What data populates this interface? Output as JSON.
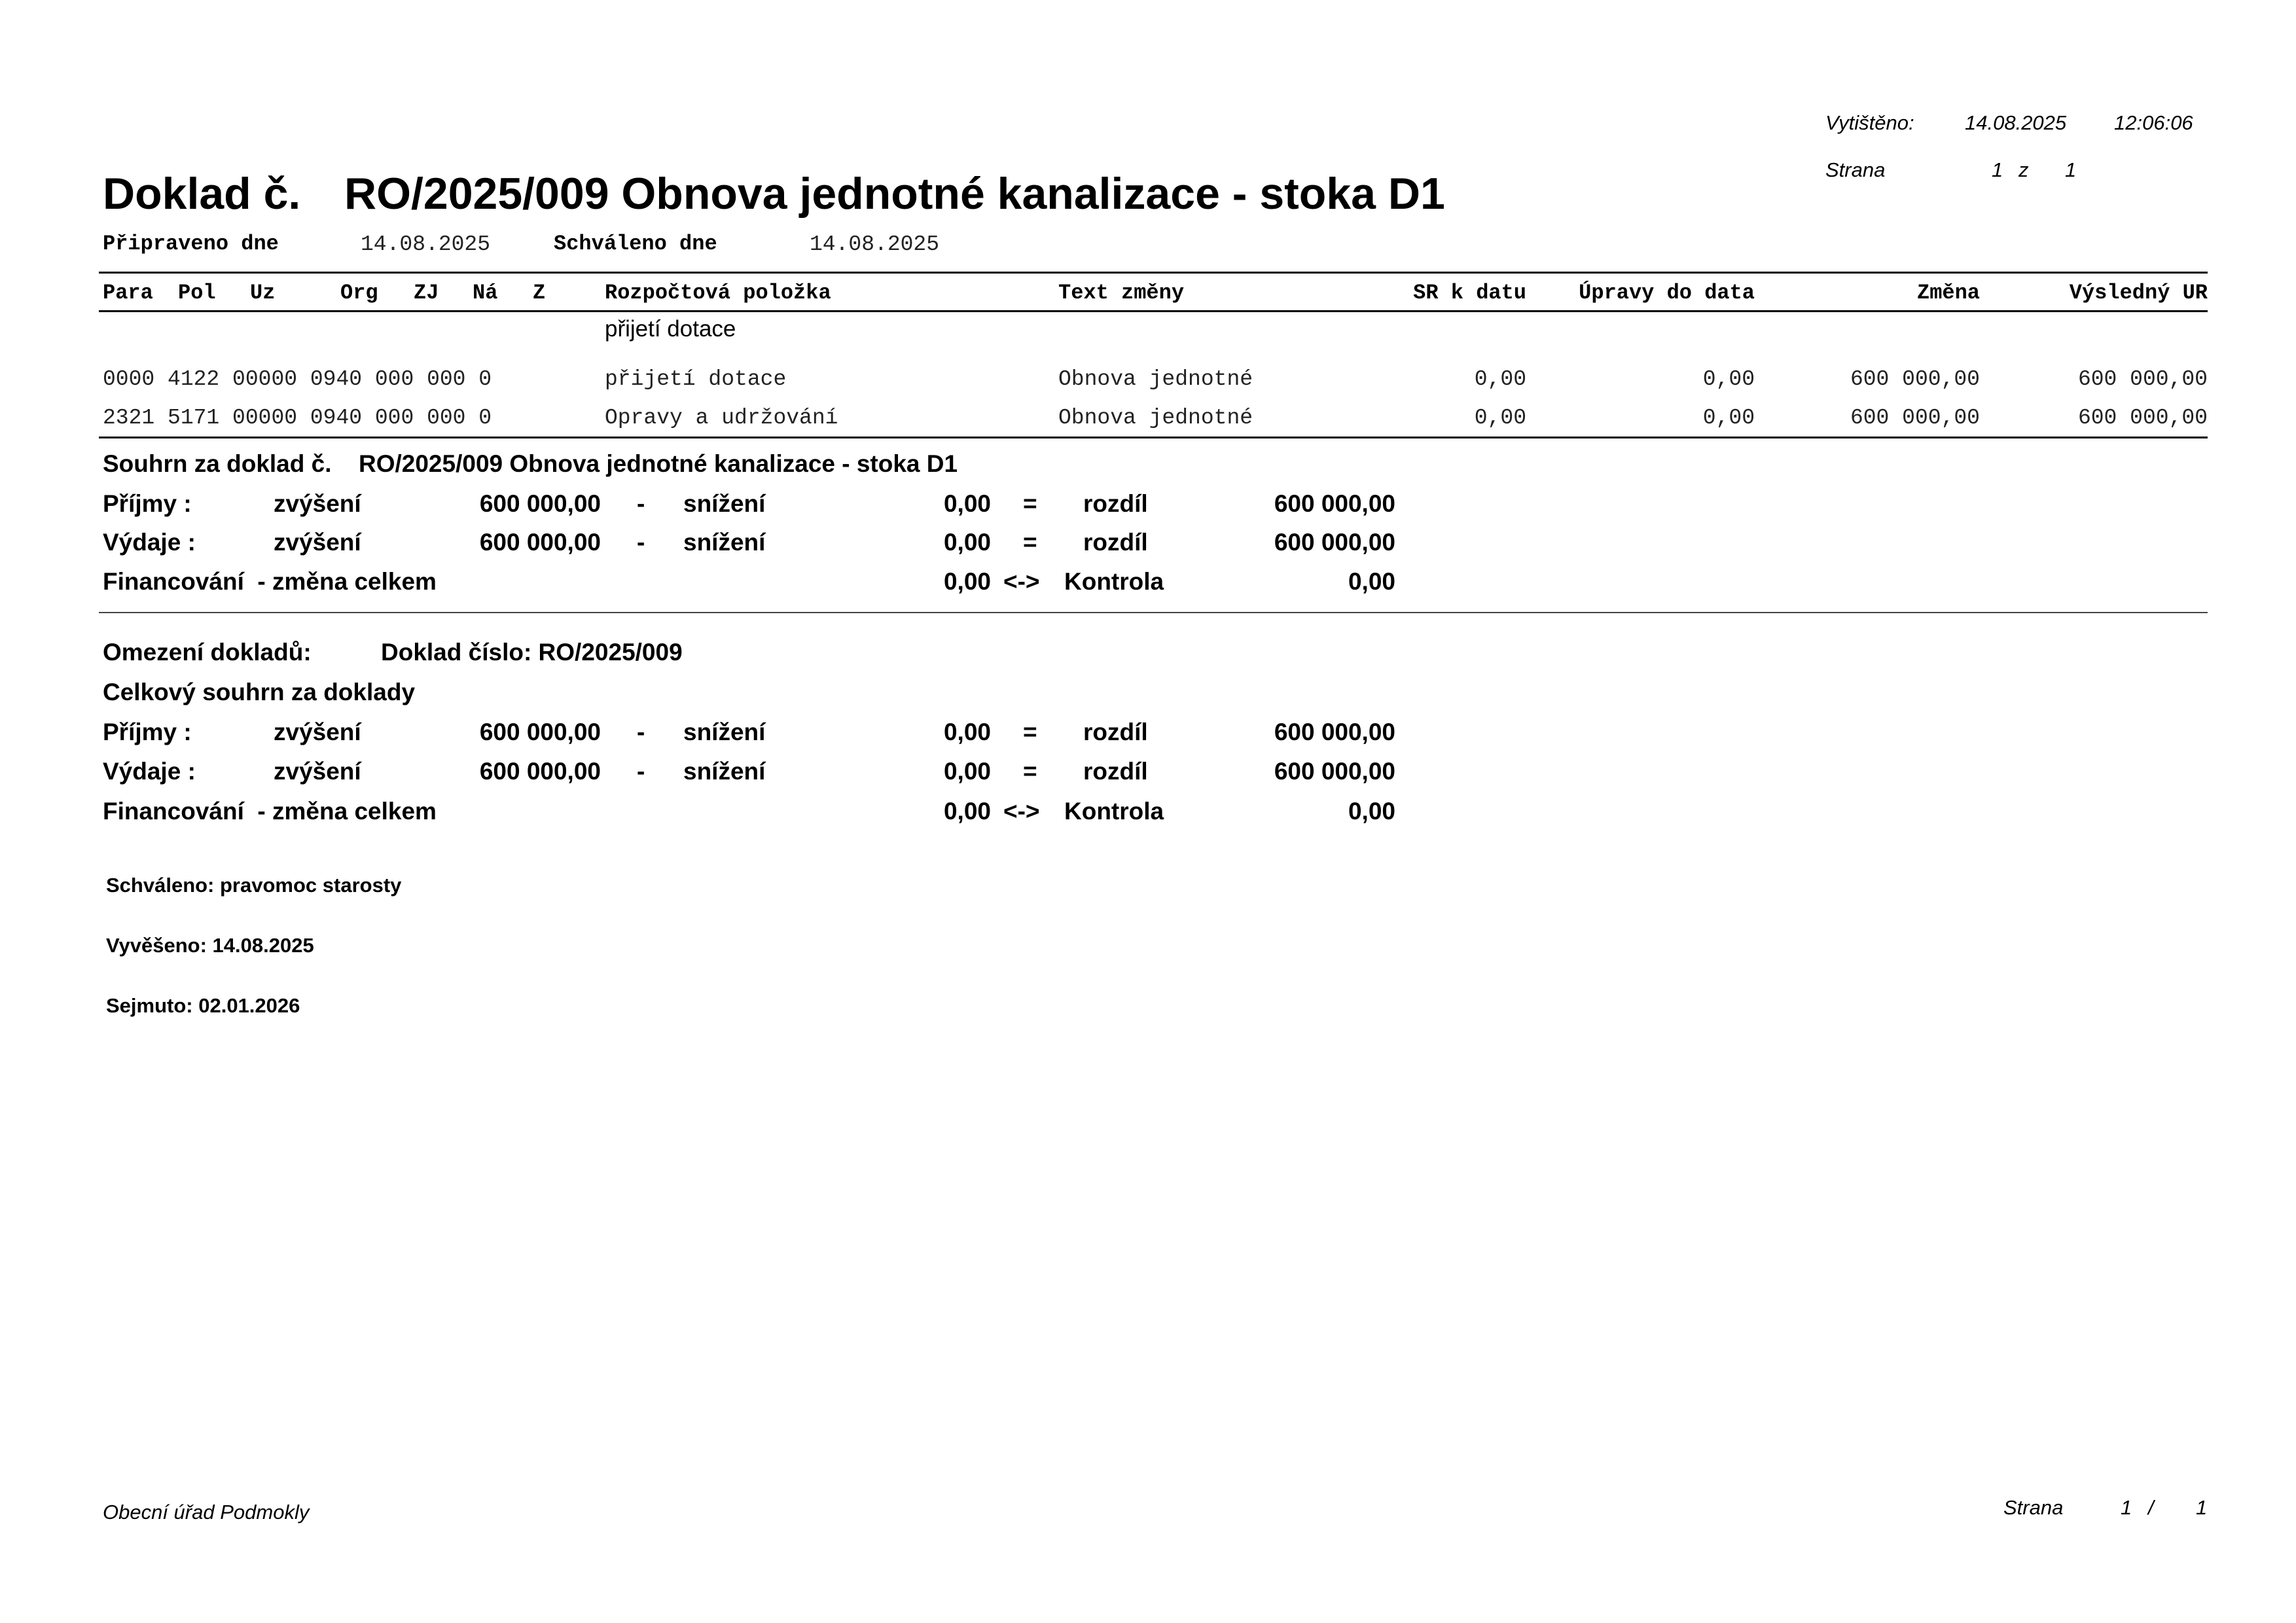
{
  "print_info": {
    "printed_label": "Vytištěno:",
    "printed_date": "14.08.2025",
    "printed_time": "12:06:06",
    "page_label": "Strana",
    "page_current": "1",
    "page_of": "z",
    "page_total": "1"
  },
  "title": {
    "prefix": "Doklad č.",
    "text": "RO/2025/009 Obnova jednotné kanalizace - stoka D1"
  },
  "dates": {
    "prepared_label": "Připraveno dne",
    "prepared_value": "14.08.2025",
    "approved_label": "Schváleno dne",
    "approved_value": "14.08.2025"
  },
  "table": {
    "headers": [
      "Para",
      "Pol",
      "Uz",
      "Org",
      "ZJ",
      "Ná",
      "Z",
      "Rozpočtová položka",
      "Text změny",
      "SR k datu",
      "Úpravy do data",
      "Změna",
      "Výsledný UR"
    ],
    "group_label": "přijetí dotace",
    "rows": [
      {
        "code": "0000 4122 00000 0940 000 000 0",
        "item": "přijetí dotace",
        "text": "Obnova jednotné",
        "sr": "0,00",
        "upravy": "0,00",
        "zmena": "600 000,00",
        "vysledny": "600 000,00"
      },
      {
        "code": "2321 5171 00000 0940 000 000 0",
        "item": "Opravy a udržování",
        "text": "Obnova jednotné",
        "sr": "0,00",
        "upravy": "0,00",
        "zmena": "600 000,00",
        "vysledny": "600 000,00"
      }
    ]
  },
  "summary": {
    "title_prefix": "Souhrn za doklad č.",
    "title_text": "RO/2025/009 Obnova jednotné kanalizace - stoka D1",
    "prijmy": {
      "label": "Příjmy :",
      "inc_label": "zvýšení",
      "inc": "600 000,00",
      "minus": "-",
      "dec_label": "snížení",
      "dec": "0,00",
      "eq": "=",
      "diff_label": "rozdíl",
      "diff": "600 000,00"
    },
    "vydaje": {
      "label": "Výdaje :",
      "inc_label": "zvýšení",
      "inc": "600 000,00",
      "minus": "-",
      "dec_label": "snížení",
      "dec": "0,00",
      "eq": "=",
      "diff_label": "rozdíl",
      "diff": "600 000,00"
    },
    "financovani": {
      "label": "Financování  - změna celkem",
      "value": "0,00",
      "arrow": "<->",
      "check_label": "Kontrola",
      "check": "0,00"
    }
  },
  "restriction": {
    "label": "Omezení dokladů:",
    "value": "Doklad číslo: RO/2025/009"
  },
  "total": {
    "title": "Celkový souhrn za doklady",
    "prijmy": {
      "label": "Příjmy :",
      "inc_label": "zvýšení",
      "inc": "600 000,00",
      "minus": "-",
      "dec_label": "snížení",
      "dec": "0,00",
      "eq": "=",
      "diff_label": "rozdíl",
      "diff": "600 000,00"
    },
    "vydaje": {
      "label": "Výdaje :",
      "inc_label": "zvýšení",
      "inc": "600 000,00",
      "minus": "-",
      "dec_label": "snížení",
      "dec": "0,00",
      "eq": "=",
      "diff_label": "rozdíl",
      "diff": "600 000,00"
    },
    "financovani": {
      "label": "Financování  - změna celkem",
      "value": "0,00",
      "arrow": "<->",
      "check_label": "Kontrola",
      "check": "0,00"
    }
  },
  "notes": {
    "approved": "Schváleno: pravomoc starosty",
    "posted": "Vyvěšeno: 14.08.2025",
    "removed": "Sejmuto: 02.01.2026"
  },
  "footer": {
    "org": "Obecní úřad Podmokly",
    "page_label": "Strana",
    "page_current": "1",
    "slash": "/",
    "page_total": "1"
  }
}
